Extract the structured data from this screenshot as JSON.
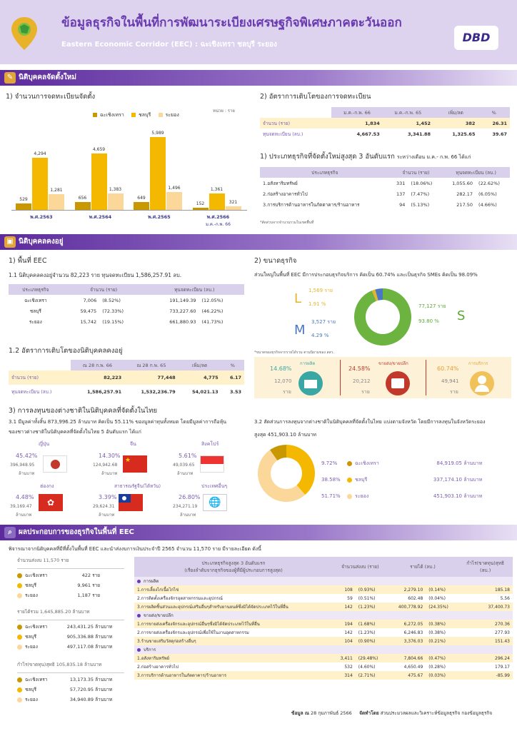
{
  "header": {
    "title": "ข้อมูลธุรกิจในพื้นที่การพัฒนาระเบียงเศรษฐกิจพิเศษภาคตะวันออก",
    "subtitle": "Eastern Economic Corridor (EEC) : ฉะเชิงเทรา ชลบุรี ระยอง",
    "logo": "DBD"
  },
  "new": {
    "band": "นิติบุคคลจัดตั้งใหม่",
    "s1_title": "1) จำนวนการจดทะเบียนจัดตั้ง",
    "unit": "หน่วย : ราย",
    "legend": [
      "ฉะเชิงเทรา",
      "ชลบุรี",
      "ระยอง"
    ],
    "colors": {
      "chachoengsao": "#c99700",
      "chonburi": "#f5b800",
      "rayong": "#fbd79a"
    },
    "chart_data": {
      "type": "bar",
      "categories": [
        "พ.ศ.2563",
        "พ.ศ.2564",
        "พ.ศ.2565",
        "พ.ศ.2566"
      ],
      "cat_note": "ม.ค.-ก.พ. 66",
      "series": [
        {
          "name": "ฉะเชิงเทรา",
          "values": [
            529,
            656,
            649,
            152
          ]
        },
        {
          "name": "ชลบุรี",
          "values": [
            4294,
            4659,
            5989,
            1361
          ]
        },
        {
          "name": "ระยอง",
          "values": [
            1281,
            1383,
            1496,
            321
          ]
        }
      ],
      "labels": [
        [
          "529",
          "4,294",
          "1,281"
        ],
        [
          "656",
          "4,659",
          "1,383"
        ],
        [
          "649",
          "5,989",
          "1,496"
        ],
        [
          "152",
          "1,361",
          "321"
        ]
      ]
    },
    "s2_title": "2) อัตราการเติบโตของการจดทะเบียน",
    "growth": {
      "headers": [
        "",
        "ม.ค.-ก.พ. 66",
        "ม.ค.-ก.พ. 65",
        "เพิ่ม/ลด",
        "%"
      ],
      "rows": [
        [
          "จำนวน (ราย)",
          "1,834",
          "1,452",
          "382",
          "26.31"
        ],
        [
          "ทุนจดทะเบียน (ลบ.)",
          "4,667.53",
          "3,341.88",
          "1,325.65",
          "39.67"
        ]
      ]
    },
    "top3_title": "1) ประเภทธุรกิจที่จัดตั้งใหม่สูงสุด 3 อันดับแรก",
    "top3_suffix": "ระหว่างเดือน ม.ค.- ก.พ. 66 ได้แก่",
    "top3": {
      "headers": [
        "ประเภทธุรกิจ",
        "จำนวน (ราย)",
        "ทุนจดทะเบียน (ลบ.)"
      ],
      "rows": [
        [
          "1.อสังหาริมทรัพย์",
          "331",
          "(18.06%)",
          "1,055.60",
          "(22.62%)"
        ],
        [
          "2.ก่อสร้างอาคารทั่วไป",
          "137",
          "(7.47%)",
          "282.17",
          "(6.05%)"
        ],
        [
          "3.การบริการด้านอาหารในภัตตาคาร/ร้านอาหาร",
          "94",
          "(5.13%)",
          "217.50",
          "(4.66%)"
        ]
      ]
    },
    "note": "*สัดส่วนจากจำนวนรวมในเขตพื้นที่"
  },
  "existing": {
    "band": "นิติบุคคลคงอยู่",
    "area_title": "1) พื้นที่ EEC",
    "area_text": "1.1 นิติบุคคลคงอยู่จำนวน  82,223  ราย ทุนจดทะเบียน 1,586,257.91 ลบ.",
    "area_table": {
      "headers": [
        "ประเภทธุรกิจ",
        "จำนวน (ราย)",
        "ทุนจดทะเบียน (ลบ.)"
      ],
      "rows": [
        [
          "ฉะเชิงเทรา",
          "7,006",
          "(8.52%)",
          "191,149.39",
          "(12.05%)"
        ],
        [
          "ชลบุรี",
          "59,475",
          "(72.33%)",
          "733,227.60",
          "(46.22%)"
        ],
        [
          "ระยอง",
          "15,742",
          "(19.15%)",
          "661,880.93",
          "(41.73%)"
        ]
      ]
    },
    "g_title": "1.2 อัตราการเติบโตของนิติบุคคลคงอยู่",
    "g_table": {
      "headers": [
        "",
        "ณ 28 ก.พ. 66",
        "ณ 28 ก.พ. 65",
        "เพิ่ม/ลด",
        "%"
      ],
      "rows": [
        [
          "จำนวน (ราย)",
          "82,223",
          "77,448",
          "4,775",
          "6.17"
        ],
        [
          "ทุนจดทะเบียน (ลบ.)",
          "1,586,257.91",
          "1,532,236.79",
          "54,021.13",
          "3.53"
        ]
      ]
    },
    "size_title": "2) ขนาดธุรกิจ",
    "size_text": "ส่วนใหญ่ในพื้นที่ EEC มีการประกอบธุรกิจบริการ คิดเป็น 60.74% และเป็นธุรกิจ SMEs คิดเป็น 98.09%",
    "size": {
      "L": {
        "letter": "L",
        "count": "1,569",
        "unit": "ราย",
        "pct": "1.91",
        "pct_unit": "%"
      },
      "M": {
        "letter": "M",
        "count": "3,527",
        "unit": "ราย",
        "pct": "4.29",
        "pct_unit": "%"
      },
      "S": {
        "letter": "S",
        "count": "77,127",
        "unit": "ราย",
        "pct": "93.80",
        "pct_unit": "%"
      }
    },
    "size_note": "*ขนาดของธุรกิจจากรายได้รวม ตามนิยามของ สสว.",
    "sectors": [
      {
        "name": "การผลิต",
        "pct": "14.68%",
        "count": "12,070",
        "unit": "ราย"
      },
      {
        "name": "ขายส่ง/ขายปลีก",
        "pct": "24.58%",
        "count": "20,212",
        "unit": "ราย"
      },
      {
        "name": "การบริการ",
        "pct": "60.74%",
        "count": "49,941",
        "unit": "ราย"
      }
    ],
    "fi_title": "3) การลงทุนของต่างชาติในนิติบุคคลที่จัดตั้งในไทย",
    "fi_text1": "3.1 มีมูลค่าทั้งสิ้น 873,996.25 ล้านบาท คิดเป็น 55.11%  ของมูลค่าทุนทั้งหมด โดยมีมูลค่าการถือหุ้น",
    "fi_text2": "ของชาวต่างชาติในนิติบุคคลที่จัดตั้งในไทย 5 อันดับแรก ได้แก่",
    "countries": [
      {
        "name": "ญี่ปุ่น",
        "pct": "45.42%",
        "value": "396,948.95",
        "unit": "ล้านบาท"
      },
      {
        "name": "จีน",
        "pct": "14.30%",
        "value": "124,942.68",
        "unit": "ล้านบาท"
      },
      {
        "name": "สิงคโปร์",
        "pct": "5.61%",
        "value": "49,039.65",
        "unit": "ล้านบาท"
      },
      {
        "name": "ฮ่องกง",
        "pct": "4.48%",
        "value": "39,169.47",
        "unit": "ล้านบาท"
      },
      {
        "name": "สาธารณรัฐจีน(ไต้หวัน)",
        "pct": "3.39%",
        "value": "29,624.31",
        "unit": "ล้านบาท"
      },
      {
        "name": "ประเทศอื่นๆ",
        "pct": "26.80%",
        "value": "234,271.19",
        "unit": "ล้านบาท"
      }
    ],
    "fi2_text1": "3.2 สัดส่วนการลงทุนจากต่างชาติในนิติบุคคลที่จัดตั้งในไทย แบ่งตามจังหวัด โดยมีการลงทุนในจังหวัดระยอง",
    "fi2_text2": "สูงสุด 451,903.10 ล้านบาท",
    "province_invest": [
      {
        "pct": "9.72%",
        "name": "ฉะเชิงเทรา",
        "value": "84,919.05",
        "unit": "ล้านบาท",
        "color": "#c99700"
      },
      {
        "pct": "38.58%",
        "name": "ชลบุรี",
        "value": "337,174.10",
        "unit": "ล้านบาท",
        "color": "#f5b800"
      },
      {
        "pct": "51.71%",
        "name": "ระยอง",
        "value": "451,903.10",
        "unit": "ล้านบาท",
        "color": "#fbd79a"
      }
    ]
  },
  "perf": {
    "band": "ผลประกอบการของธุรกิจในพื้นที่ EEC",
    "intro": "พิจารณาจากนิติบุคคลที่มีที่ตั้งในพื้นที่ EEC และนำส่งงบการเงินประจำปี 2565 จำนวน 11,570 ราย มีรายละเอียด ดังนี้",
    "groups": [
      {
        "title": "จำนวนส่งงบ 11,570 ราย",
        "rows": [
          [
            "ฉะเชิงเทรา",
            "422",
            "ราย"
          ],
          [
            "ชลบุรี",
            "9,961",
            "ราย"
          ],
          [
            "ระยอง",
            "1,187",
            "ราย"
          ]
        ]
      },
      {
        "title": "รายได้รวม 1,645,885.20 ล้านบาท",
        "rows": [
          [
            "ฉะเชิงเทรา",
            "243,431.25",
            "ล้านบาท"
          ],
          [
            "ชลบุรี",
            "905,336.88",
            "ล้านบาท"
          ],
          [
            "ระยอง",
            "497,117.08",
            "ล้านบาท"
          ]
        ]
      },
      {
        "title": "กำไร(ขาดทุน)สุทธิ 105,835.18 ล้านบาท",
        "rows": [
          [
            "ฉะเชิงเทรา",
            "13,173.35",
            "ล้านบาท"
          ],
          [
            "ชลบุรี",
            "57,720.95",
            "ล้านบาท"
          ],
          [
            "ระยอง",
            "34,940.89",
            "ล้านบาท"
          ]
        ]
      }
    ],
    "table": {
      "h1a": "ประเภทธุรกิจสูงสุด 3 อันดับแรก",
      "h1b": "(เรียงลำดับจากธุรกิจของผู้ที่มีผู้ประกอบการสูงสุด)",
      "h2": "จำนวนส่งงบ (ราย)",
      "h3": "รายได้ (ลบ.)",
      "h4a": "กำไร(ขาดทุน)สุทธิ",
      "h4b": "(ลบ.)",
      "sections": [
        {
          "name": "การผลิต",
          "rows": [
            [
              "1.การเลี้ยงไก่เนื้อไก่ไข่",
              "108",
              "(0.93%)",
              "2,279.10",
              "(0.14%)",
              "185.18"
            ],
            [
              "2.การติดตั้งเครื่องจักรอุตสาหกรรมและอุปกรณ์",
              "59",
              "(0.51%)",
              "602.48",
              "(0.04%)",
              "5.56"
            ],
            [
              "3.การผลิตชิ้นส่วนและอุปกรณ์เสริมอื่นๆสำหรับยานยนต์ซึ่งมิได้จัดประเภทไว้ในที่อื่น",
              "142",
              "(1.23%)",
              "400,778.92",
              "(24.35%)",
              "37,400.73"
            ]
          ]
        },
        {
          "name": "ขายส่ง/ขายปลีก",
          "rows": [
            [
              "1.การขายส่งเครื่องจักรและอุปกรณ์อื่นๆซึ่งมิได้จัดประเภทไว้ในที่อื่น",
              "194",
              "(1.68%)",
              "6,272.05",
              "(0.38%)",
              "270.36"
            ],
            [
              "2.การขายส่งเครื่องจักรและอุปกรณ์เพื่อใช้ในงานอุตสาหกรรม",
              "142",
              "(1.23%)",
              "6,246.83",
              "(0.38%)",
              "277.93"
            ],
            [
              "3.ร้านขายเสริมวัสดุก่อสร้างอื่นๆ",
              "104",
              "(0.90%)",
              "3,376.03",
              "(0.21%)",
              "151.43"
            ]
          ]
        },
        {
          "name": "บริการ",
          "rows": [
            [
              "1.อสังหาริมทรัพย์",
              "3,411",
              "(29.48%)",
              "7,804.66",
              "(0.47%)",
              "296.24"
            ],
            [
              "2.ก่อสร้างอาคารทั่วไป",
              "532",
              "(4.60%)",
              "4,650.49",
              "(0.28%)",
              "179.17"
            ],
            [
              "3.การบริการด้านอาหารในภัตตาคาร/ร้านอาหาร",
              "314",
              "(2.71%)",
              "475.67",
              "(0.03%)",
              "-85.99"
            ]
          ]
        }
      ]
    },
    "footer_date_label": "ข้อมูล ณ",
    "footer_date": "28 กุมภาพันธ์ 2566",
    "footer_by_label": "จัดทำโดย",
    "footer_by": "ส่วนประมวลผลและวิเคราะห์ข้อมูลธุรกิจ กองข้อมูลธุรกิจ"
  }
}
